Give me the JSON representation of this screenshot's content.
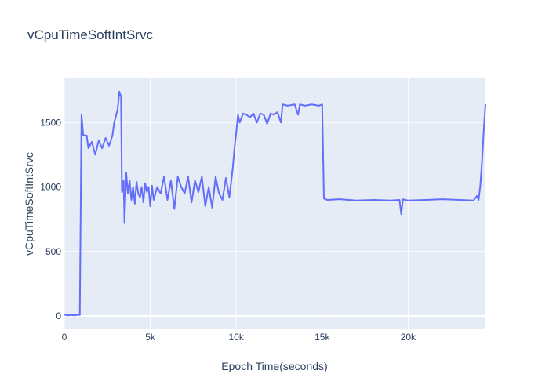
{
  "chart_data": {
    "type": "line",
    "title": "vCpuTimeSoftIntSrvc",
    "x_label": "Epoch Time(seconds)",
    "y_label": "vCpuTimeSoftIntSrvc",
    "x": [
      0,
      200,
      400,
      600,
      800,
      900,
      1000,
      1100,
      1300,
      1400,
      1600,
      1800,
      2000,
      2200,
      2400,
      2600,
      2800,
      2900,
      3000,
      3100,
      3200,
      3300,
      3350,
      3450,
      3500,
      3600,
      3700,
      3800,
      3900,
      4000,
      4100,
      4200,
      4300,
      4400,
      4500,
      4600,
      4700,
      4800,
      4900,
      5000,
      5100,
      5200,
      5400,
      5600,
      5800,
      6000,
      6200,
      6400,
      6600,
      6800,
      7000,
      7200,
      7400,
      7600,
      7800,
      8000,
      8200,
      8400,
      8600,
      8800,
      9000,
      9200,
      9400,
      9600,
      9800,
      9900,
      10000,
      10100,
      10200,
      10400,
      10600,
      10800,
      11000,
      11200,
      11400,
      11600,
      11800,
      12000,
      12200,
      12400,
      12600,
      12700,
      13000,
      13400,
      13600,
      13700,
      14000,
      14400,
      14800,
      15000,
      15100,
      15300,
      16000,
      17000,
      18000,
      19000,
      19500,
      19600,
      19700,
      20000,
      21000,
      22000,
      23000,
      23800,
      24000,
      24100,
      24200,
      24300,
      24400,
      24500
    ],
    "series": [
      {
        "name": "vCpuTimeSoftIntSrvc",
        "color": "#636efa",
        "values": [
          10,
          5,
          8,
          5,
          10,
          8,
          1560,
          1400,
          1400,
          1300,
          1350,
          1250,
          1360,
          1300,
          1380,
          1320,
          1400,
          1500,
          1550,
          1600,
          1740,
          1700,
          960,
          1050,
          720,
          1110,
          950,
          1050,
          900,
          1000,
          870,
          1040,
          950,
          920,
          1000,
          880,
          1030,
          960,
          1000,
          850,
          1010,
          900,
          1000,
          950,
          1080,
          900,
          1050,
          830,
          1080,
          1000,
          950,
          1080,
          880,
          1050,
          960,
          1080,
          850,
          1000,
          840,
          1080,
          950,
          900,
          1070,
          920,
          1150,
          1300,
          1420,
          1560,
          1500,
          1570,
          1560,
          1540,
          1570,
          1500,
          1570,
          1560,
          1490,
          1570,
          1560,
          1580,
          1500,
          1640,
          1630,
          1640,
          1560,
          1640,
          1630,
          1640,
          1630,
          1640,
          910,
          900,
          905,
          895,
          900,
          895,
          900,
          790,
          905,
          895,
          900,
          905,
          900,
          895,
          930,
          900,
          1010,
          1200,
          1440,
          1640
        ]
      }
    ],
    "xlim": [
      0,
      24500
    ],
    "ylim": [
      -103,
      1842
    ],
    "xticks": [
      0,
      {
        "value": 5000,
        "label": "5k"
      },
      {
        "value": 10000,
        "label": "10k"
      },
      {
        "value": 15000,
        "label": "15k"
      },
      {
        "value": 20000,
        "label": "20k"
      }
    ],
    "yticks": [
      0,
      500,
      1000,
      1500
    ],
    "grid": true
  }
}
